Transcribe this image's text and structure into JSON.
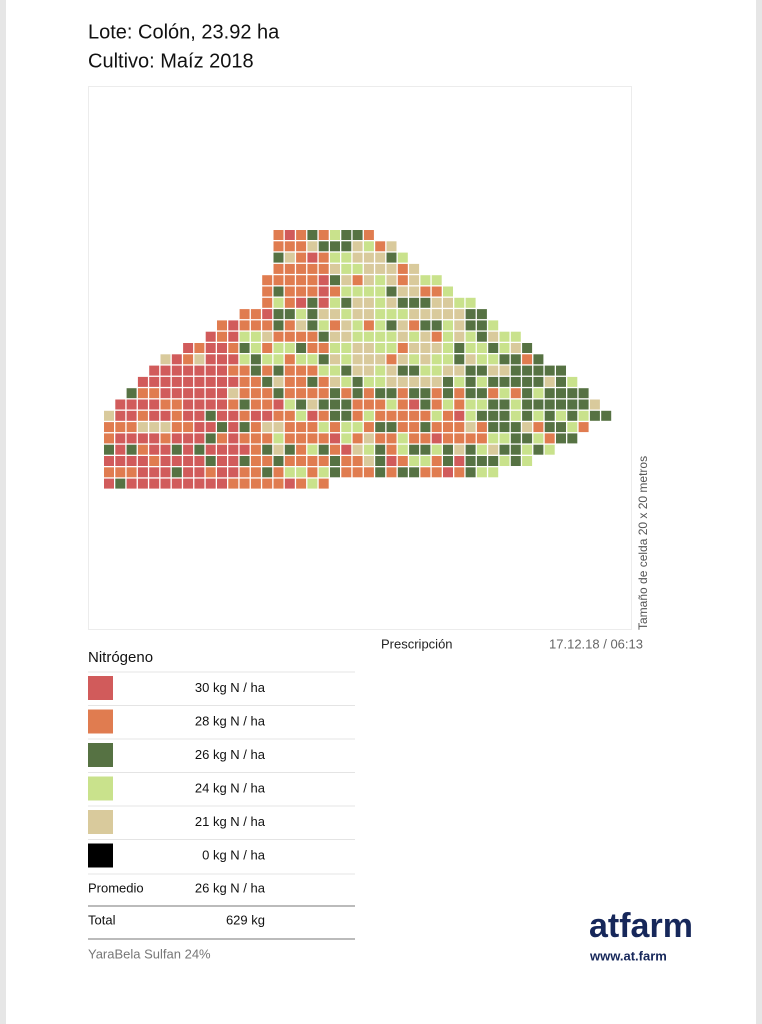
{
  "header": {
    "title": "Lote: Colón, 23.92 ha",
    "subtitle": "Cultivo: Maíz 2018"
  },
  "map": {
    "side_label": "Tamaño de celda 20 x 20 metros",
    "caption": "Prescripción",
    "timestamp": "17.12.18 / 06:13"
  },
  "legend": {
    "title": "Nitrógeno",
    "items": [
      {
        "label": "30 kg N / ha",
        "color": "#d15b5b"
      },
      {
        "label": "28 kg N / ha",
        "color": "#e07c50"
      },
      {
        "label": "26 kg N / ha",
        "color": "#567243"
      },
      {
        "label": "24 kg N / ha",
        "color": "#c9e28c"
      },
      {
        "label": "21 kg N / ha",
        "color": "#d9ca9c"
      },
      {
        "label": "0 kg N / ha",
        "color": "#000000"
      }
    ],
    "average": {
      "label": "Promedio",
      "value": "26 kg N / ha"
    },
    "total": {
      "label": "Total",
      "value": "629 kg"
    },
    "product": "YaraBela Sulfan 24%"
  },
  "brand": {
    "logo": "atfarm",
    "url": "www.at.farm"
  }
}
